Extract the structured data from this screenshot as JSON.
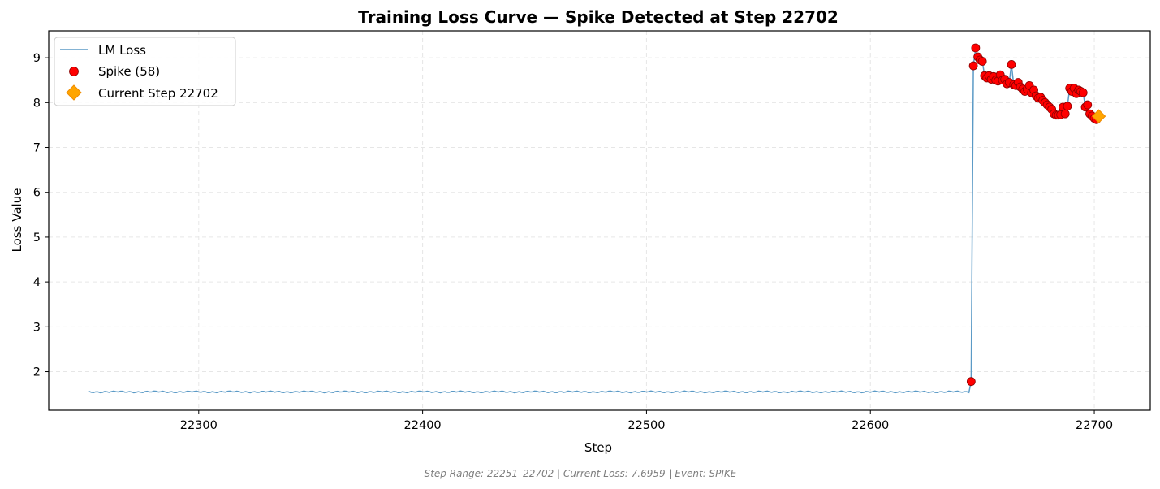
{
  "chart_data": {
    "type": "line",
    "title": "Training Loss Curve — Spike Detected at Step 22702",
    "xlabel": "Step",
    "ylabel": "Loss Value",
    "xlim": [
      22233,
      22725
    ],
    "ylim": [
      1.14,
      9.6
    ],
    "xticks": [
      22300,
      22400,
      22500,
      22600,
      22700
    ],
    "yticks": [
      2,
      3,
      4,
      5,
      6,
      7,
      8,
      9
    ],
    "grid": true,
    "legend_position": "top-left",
    "legend": [
      "LM Loss",
      "Spike (58)",
      "Current Step 22702"
    ],
    "colors": {
      "line": "#5b9ac6",
      "spike": "#ff0000",
      "spike_edge": "#8b0000",
      "current": "#ffa500"
    },
    "series": [
      {
        "name": "LM Loss",
        "kind": "line",
        "baseline_range": [
          22251,
          22644
        ],
        "baseline_level": 1.55,
        "x": [
          22645,
          22646,
          22647,
          22648,
          22649,
          22650,
          22651,
          22652,
          22653,
          22654,
          22655,
          22656,
          22657,
          22658,
          22659,
          22660,
          22661,
          22662,
          22663,
          22664,
          22665,
          22666,
          22667,
          22668,
          22669,
          22670,
          22671,
          22672,
          22673,
          22674,
          22675,
          22676,
          22677,
          22678,
          22679,
          22680,
          22681,
          22682,
          22683,
          22684,
          22685,
          22686,
          22687,
          22688,
          22689,
          22690,
          22691,
          22692,
          22693,
          22694,
          22695,
          22696,
          22697,
          22698,
          22699,
          22700,
          22701,
          22702
        ],
        "y": [
          1.78,
          8.82,
          9.22,
          9.02,
          8.95,
          8.92,
          8.6,
          8.55,
          8.6,
          8.52,
          8.58,
          8.5,
          8.48,
          8.62,
          8.5,
          8.52,
          8.42,
          8.45,
          8.85,
          8.4,
          8.38,
          8.45,
          8.35,
          8.3,
          8.25,
          8.3,
          8.38,
          8.22,
          8.28,
          8.15,
          8.1,
          8.12,
          8.05,
          8.0,
          7.95,
          7.9,
          7.85,
          7.75,
          7.72,
          7.72,
          7.73,
          7.9,
          7.75,
          7.92,
          8.32,
          8.25,
          8.32,
          8.2,
          8.28,
          8.25,
          8.22,
          7.9,
          7.95,
          7.75,
          7.7,
          7.65,
          7.62,
          7.69
        ]
      },
      {
        "name": "Spike (58)",
        "kind": "scatter",
        "count": 58,
        "x": [
          22645,
          22646,
          22647,
          22648,
          22649,
          22650,
          22651,
          22652,
          22653,
          22654,
          22655,
          22656,
          22657,
          22658,
          22659,
          22660,
          22661,
          22662,
          22663,
          22664,
          22665,
          22666,
          22667,
          22668,
          22669,
          22670,
          22671,
          22672,
          22673,
          22674,
          22675,
          22676,
          22677,
          22678,
          22679,
          22680,
          22681,
          22682,
          22683,
          22684,
          22685,
          22686,
          22687,
          22688,
          22689,
          22690,
          22691,
          22692,
          22693,
          22694,
          22695,
          22696,
          22697,
          22698,
          22699,
          22700,
          22701,
          22702
        ],
        "y": [
          1.78,
          8.82,
          9.22,
          9.02,
          8.95,
          8.92,
          8.6,
          8.55,
          8.6,
          8.52,
          8.58,
          8.5,
          8.48,
          8.62,
          8.5,
          8.52,
          8.42,
          8.45,
          8.85,
          8.4,
          8.38,
          8.45,
          8.35,
          8.3,
          8.25,
          8.3,
          8.38,
          8.22,
          8.28,
          8.15,
          8.1,
          8.12,
          8.05,
          8.0,
          7.95,
          7.9,
          7.85,
          7.75,
          7.72,
          7.72,
          7.73,
          7.9,
          7.75,
          7.92,
          8.32,
          8.25,
          8.32,
          8.2,
          8.28,
          8.25,
          8.22,
          7.9,
          7.95,
          7.75,
          7.7,
          7.65,
          7.62,
          7.69
        ]
      },
      {
        "name": "Current Step 22702",
        "kind": "marker",
        "x": [
          22702
        ],
        "y": [
          7.6959
        ]
      }
    ],
    "footer": "Step Range: 22251–22702 | Current Loss: 7.6959 | Event: SPIKE"
  }
}
